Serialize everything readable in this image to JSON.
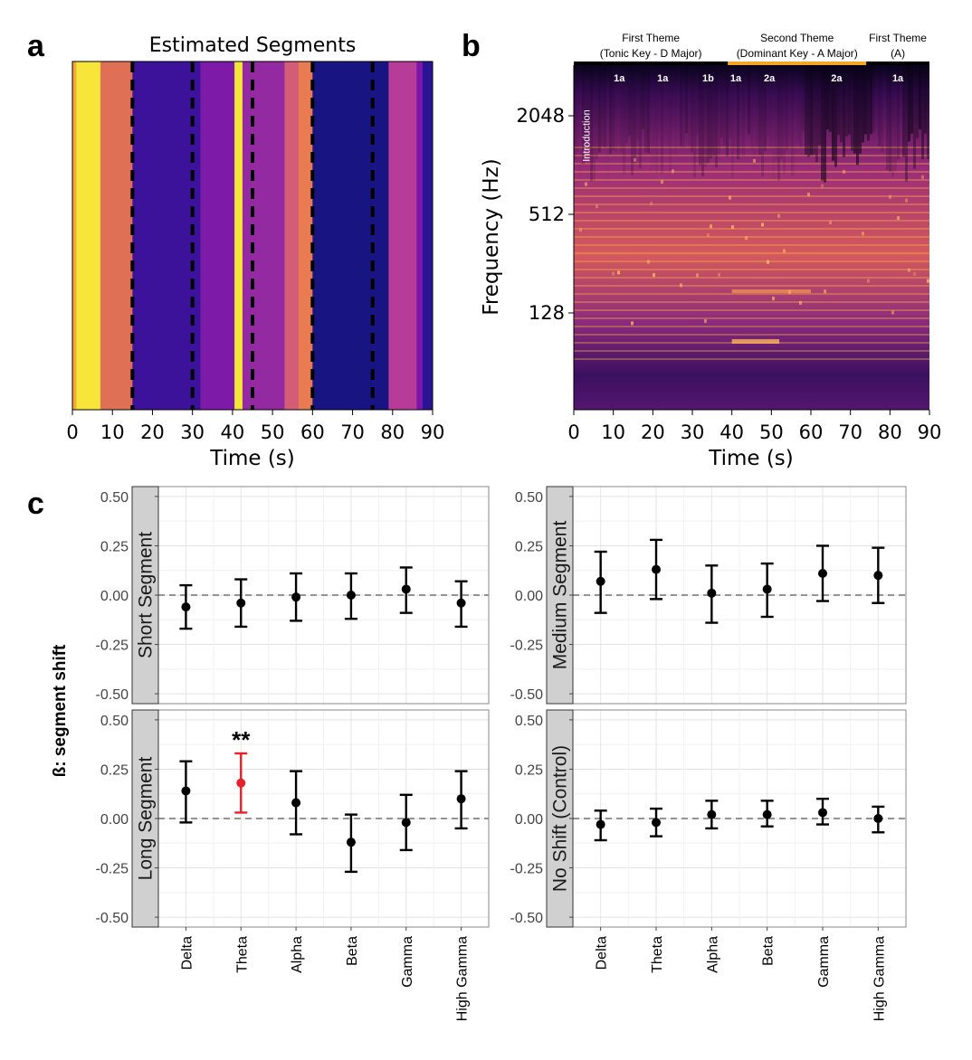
{
  "panels": {
    "a": {
      "letter": "a",
      "chart_data": {
        "type": "heatmap",
        "title": "Estimated Segments",
        "xlabel": "Time (s)",
        "ylabel": "",
        "xlim": [
          0,
          90
        ],
        "xticks": [
          "0",
          "10",
          "20",
          "30",
          "40",
          "50",
          "60",
          "70",
          "80",
          "90"
        ],
        "segments": [
          {
            "start": 0,
            "end": 1,
            "color": "#f4a93a"
          },
          {
            "start": 1,
            "end": 7,
            "color": "#f7e53a"
          },
          {
            "start": 7,
            "end": 15,
            "color": "#e07055"
          },
          {
            "start": 15,
            "end": 32,
            "color": "#3c129a"
          },
          {
            "start": 32,
            "end": 40.5,
            "color": "#7e1aa8"
          },
          {
            "start": 40.5,
            "end": 42.5,
            "color": "#f4e53b"
          },
          {
            "start": 42.5,
            "end": 53,
            "color": "#942aa2"
          },
          {
            "start": 53,
            "end": 56.5,
            "color": "#d35c77"
          },
          {
            "start": 56.5,
            "end": 60,
            "color": "#e87b52"
          },
          {
            "start": 60,
            "end": 79,
            "color": "#181582"
          },
          {
            "start": 79,
            "end": 86,
            "color": "#b73c97"
          },
          {
            "start": 86,
            "end": 87.5,
            "color": "#7b17a8"
          },
          {
            "start": 87.5,
            "end": 90,
            "color": "#2a1395"
          }
        ],
        "boundaries": [
          15,
          30,
          45,
          60,
          75
        ]
      }
    },
    "b": {
      "letter": "b",
      "chart_data": {
        "type": "heatmap",
        "title": "",
        "xlabel": "Time (s)",
        "ylabel": "Frequency (Hz)",
        "xlim": [
          0,
          90
        ],
        "xticks": [
          "0",
          "10",
          "20",
          "30",
          "40",
          "50",
          "60",
          "70",
          "80",
          "90"
        ],
        "yticks": [
          "128",
          "512",
          "2048"
        ],
        "ytick_values": [
          128,
          512,
          2048
        ],
        "yscale": "log",
        "themes": [
          {
            "line1": "First Theme",
            "line2": "(Tonic Key - D Major)",
            "start": 0,
            "end": 39,
            "bar_color": "#000000"
          },
          {
            "line1": "Second Theme",
            "line2": "(Dominant Key - A Major)",
            "start": 39,
            "end": 74,
            "bar_color": "#f5a623"
          },
          {
            "line1": "First Theme",
            "line2": "(A)",
            "start": 74,
            "end": 90,
            "bar_color": "#000000"
          }
        ],
        "sections": [
          {
            "label": "Introduction",
            "t": 4
          },
          {
            "label": "1a",
            "t": 11.5
          },
          {
            "label": "1a",
            "t": 22.5
          },
          {
            "label": "1b",
            "t": 34
          },
          {
            "label": "1a",
            "t": 41
          },
          {
            "label": "2a",
            "t": 49.5
          },
          {
            "label": "2a",
            "t": 66.5
          },
          {
            "label": "1a",
            "t": 82
          }
        ]
      }
    },
    "c": {
      "letter": "c",
      "ylabel": "ß: segment shift",
      "significance": "**",
      "chart_data": {
        "type": "scatter",
        "categories": [
          "Delta",
          "Theta",
          "Alpha",
          "Beta",
          "Gamma",
          "High Gamma"
        ],
        "ylim": [
          -0.55,
          0.55
        ],
        "yticks": [
          "-0.50",
          "-0.25",
          "0.00",
          "0.25",
          "0.50"
        ],
        "ytick_values": [
          -0.5,
          -0.25,
          0,
          0.25,
          0.5
        ],
        "colors": {
          "default": "#000000",
          "significant": "#e8202a"
        },
        "facets": [
          {
            "strip": "Short Segment",
            "values": [
              -0.06,
              -0.04,
              -0.01,
              0.0,
              0.03,
              -0.04
            ],
            "lower": [
              -0.17,
              -0.16,
              -0.13,
              -0.12,
              -0.09,
              -0.16
            ],
            "upper": [
              0.05,
              0.08,
              0.11,
              0.11,
              0.14,
              0.07
            ],
            "significant": [
              false,
              false,
              false,
              false,
              false,
              false
            ]
          },
          {
            "strip": "Medium Segment",
            "values": [
              0.07,
              0.13,
              0.01,
              0.03,
              0.11,
              0.1
            ],
            "lower": [
              -0.09,
              -0.02,
              -0.14,
              -0.11,
              -0.03,
              -0.04
            ],
            "upper": [
              0.22,
              0.28,
              0.15,
              0.16,
              0.25,
              0.24
            ],
            "significant": [
              false,
              false,
              false,
              false,
              false,
              false
            ]
          },
          {
            "strip": "Long Segment",
            "values": [
              0.14,
              0.18,
              0.08,
              -0.12,
              -0.02,
              0.1
            ],
            "lower": [
              -0.02,
              0.03,
              -0.08,
              -0.27,
              -0.16,
              -0.05
            ],
            "upper": [
              0.29,
              0.33,
              0.24,
              0.02,
              0.12,
              0.24
            ],
            "significant": [
              false,
              true,
              false,
              false,
              false,
              false
            ]
          },
          {
            "strip": "No Shift (Control)",
            "values": [
              -0.03,
              -0.02,
              0.02,
              0.02,
              0.03,
              0.0
            ],
            "lower": [
              -0.11,
              -0.09,
              -0.05,
              -0.04,
              -0.03,
              -0.07
            ],
            "upper": [
              0.04,
              0.05,
              0.09,
              0.09,
              0.1,
              0.06
            ],
            "significant": [
              false,
              false,
              false,
              false,
              false,
              false
            ]
          }
        ]
      }
    }
  }
}
